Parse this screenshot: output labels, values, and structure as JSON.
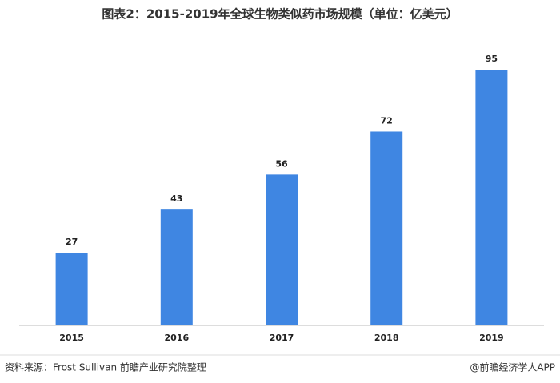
{
  "chart_data": {
    "type": "bar",
    "title": "图表2：2015-2019年全球生物类似药市场规模（单位：亿美元）",
    "categories": [
      "2015",
      "2016",
      "2017",
      "2018",
      "2019"
    ],
    "values": [
      27,
      43,
      56,
      72,
      95
    ],
    "color": "#3f86e2",
    "source": "资料来源：Frost Sullivan 前瞻产业研究院整理",
    "credit": "@前瞻经济学人APP"
  }
}
